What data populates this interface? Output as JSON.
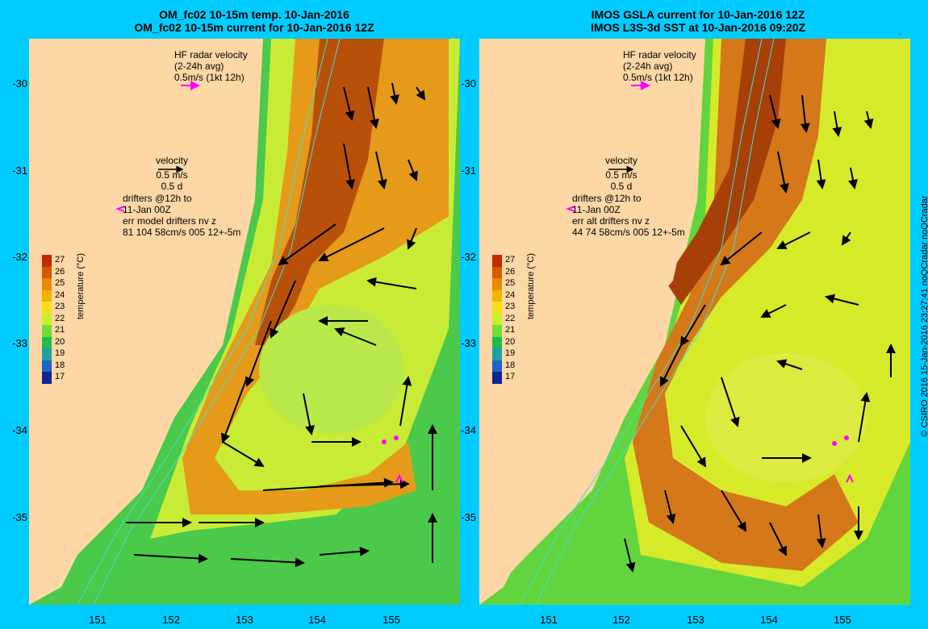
{
  "left_title": {
    "line1": "OM_fc02 10-15m temp. 10-Jan-2016",
    "line2": "OM_fc02 10-15m current for 10-Jan-2016 12Z"
  },
  "right_title": {
    "line1": "IMOS GSLA current for 10-Jan-2016 12Z",
    "line2": "IMOS L3S-3d SST at 10-Jan-2016 09:20Z"
  },
  "y_ticks": [
    "-30",
    "-31",
    "-32",
    "-33",
    "-34",
    "-35"
  ],
  "x_ticks": [
    "151",
    "152",
    "153",
    "154",
    "155"
  ],
  "hf_radar": {
    "line1": "HF radar velocity",
    "line2": "(2-24h avg)",
    "line3": "0.5m/s (1kt 12h)"
  },
  "velocity_key": {
    "title": "velocity",
    "speed": "0.5 m/s",
    "time": "0.5 d"
  },
  "drifters": {
    "line1": "drifters @12h to",
    "line2": "11-Jan 00Z"
  },
  "left_stats": {
    "line1": "err model drifters nv z",
    "line2": "81 104 58cm/s 005 12+-5m"
  },
  "right_stats": {
    "line1": "err alt drifters nv z",
    "line2": "44 74 58cm/s 005 12+-5m"
  },
  "colorbar": {
    "title": "temperature (°C)",
    "labels": [
      "27",
      "26",
      "25",
      "24",
      "23",
      "22",
      "21",
      "20",
      "19",
      "18",
      "17"
    ],
    "colors": [
      "#c22a00",
      "#d45a00",
      "#e88a00",
      "#f2b400",
      "#f5e21a",
      "#c8f02a",
      "#72dd3a",
      "#22bb50",
      "#1fa0a0",
      "#1d63c8",
      "#11248f"
    ]
  },
  "credit": "© CSIRO 2016   15-Jan-2016 23:27:41  noQCradar noQCradar",
  "colors": {
    "background": "#00ccff",
    "land": "#fdd7a6",
    "radar_arrow": "#ff00ff",
    "isobath": "#40e0d0"
  }
}
